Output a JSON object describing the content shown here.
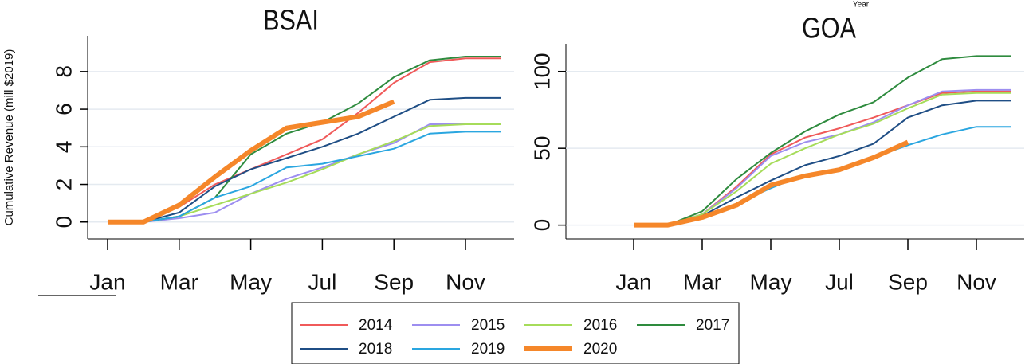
{
  "chart_data": [
    {
      "type": "line",
      "title": "BSAI",
      "y_label": "Cumulative Revenue (mill $2019)",
      "categories": [
        "Jan",
        null,
        "Mar",
        null,
        "May",
        null,
        "Jul",
        null,
        "Sep",
        null,
        "Nov",
        null
      ],
      "ylim": [
        -0.9,
        9.9
      ],
      "yticks": [
        0,
        2,
        4,
        6,
        8
      ],
      "grid": true,
      "series": [
        {
          "name": "2014",
          "color": "#f05a5a",
          "values": [
            0,
            0,
            0.8,
            2.0,
            2.8,
            3.6,
            4.4,
            5.8,
            7.4,
            8.5,
            8.7,
            8.7
          ]
        },
        {
          "name": "2015",
          "color": "#9d8ef0",
          "values": [
            0,
            0,
            0.2,
            0.5,
            1.5,
            2.3,
            2.9,
            3.6,
            4.2,
            5.2,
            5.2,
            5.2
          ]
        },
        {
          "name": "2016",
          "color": "#a6dc5a",
          "values": [
            0,
            0,
            0.3,
            0.9,
            1.5,
            2.1,
            2.8,
            3.6,
            4.3,
            5.1,
            5.2,
            5.2
          ]
        },
        {
          "name": "2017",
          "color": "#2e8b3e",
          "values": [
            0,
            0,
            0.3,
            1.3,
            3.6,
            4.7,
            5.3,
            6.3,
            7.7,
            8.6,
            8.8,
            8.8
          ]
        },
        {
          "name": "2018",
          "color": "#1f4e85",
          "values": [
            0,
            0,
            0.5,
            1.9,
            2.8,
            3.4,
            4.0,
            4.7,
            5.6,
            6.5,
            6.6,
            6.6
          ]
        },
        {
          "name": "2019",
          "color": "#2aa6e0",
          "values": [
            0,
            0,
            0.3,
            1.3,
            1.9,
            2.9,
            3.1,
            3.5,
            3.9,
            4.7,
            4.8,
            4.8
          ]
        },
        {
          "name": "2020",
          "color": "#f5872a",
          "values": [
            0,
            0,
            0.9,
            2.4,
            3.8,
            5.0,
            5.3,
            5.6,
            6.4,
            null,
            null,
            null
          ]
        }
      ]
    },
    {
      "type": "line",
      "title": "GOA",
      "categories": [
        "Jan",
        null,
        "Mar",
        null,
        "May",
        null,
        "Jul",
        null,
        "Sep",
        null,
        "Nov",
        null
      ],
      "ylim": [
        -9,
        118
      ],
      "yticks": [
        0,
        50,
        100
      ],
      "grid": true,
      "series": [
        {
          "name": "2014",
          "color": "#f05a5a",
          "values": [
            0,
            0,
            7,
            25,
            46,
            57,
            63,
            70,
            78,
            86,
            87,
            87
          ]
        },
        {
          "name": "2015",
          "color": "#9d8ef0",
          "values": [
            0,
            0,
            7,
            24,
            45,
            54,
            59,
            67,
            78,
            87,
            88,
            88
          ]
        },
        {
          "name": "2016",
          "color": "#a6dc5a",
          "values": [
            0,
            0,
            7,
            22,
            40,
            50,
            59,
            66,
            76,
            85,
            86,
            86
          ]
        },
        {
          "name": "2017",
          "color": "#2e8b3e",
          "values": [
            0,
            0,
            9,
            30,
            47,
            61,
            72,
            80,
            96,
            108,
            110,
            110
          ]
        },
        {
          "name": "2018",
          "color": "#1f4e85",
          "values": [
            0,
            0,
            6,
            18,
            29,
            39,
            45,
            53,
            70,
            78,
            81,
            81
          ]
        },
        {
          "name": "2019",
          "color": "#2aa6e0",
          "values": [
            0,
            0,
            5,
            14,
            24,
            33,
            36,
            44,
            52,
            59,
            64,
            64
          ]
        },
        {
          "name": "2020",
          "color": "#f5872a",
          "values": [
            0,
            0,
            5,
            13,
            26,
            32,
            36,
            44,
            54,
            null,
            null,
            null
          ]
        }
      ]
    }
  ],
  "legend_title": "Year"
}
